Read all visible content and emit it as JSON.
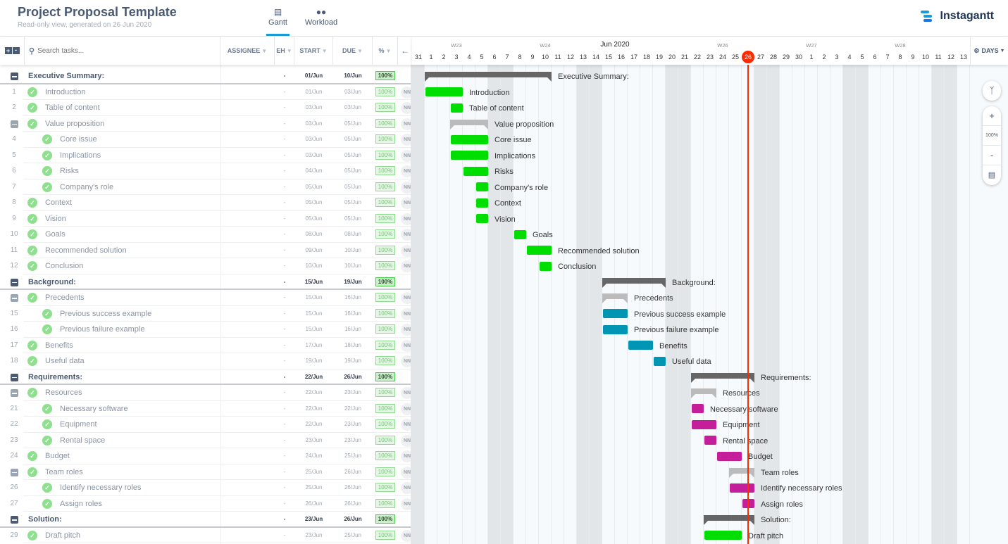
{
  "header": {
    "title": "Project Proposal Template",
    "subtitle": "Read-only view, generated on 26 Jun 2020",
    "tabs": [
      {
        "label": "Gantt",
        "icon": "gantt-icon",
        "active": true
      },
      {
        "label": "Workload",
        "icon": "users-icon"
      }
    ],
    "brand": "Instagantt"
  },
  "table": {
    "search_placeholder": "Search tasks...",
    "columns": [
      "ASSIGNEE",
      "EH",
      "START",
      "DUE",
      "%"
    ]
  },
  "timeline": {
    "month": "Jun 2020",
    "weeks": [
      "W23",
      "W24",
      "W26",
      "W27",
      "W28"
    ],
    "scale_label": "DAYS",
    "today": "26",
    "zoom": "100%",
    "days": [
      "31",
      "1",
      "2",
      "3",
      "4",
      "5",
      "6",
      "7",
      "8",
      "9",
      "10",
      "11",
      "12",
      "13",
      "14",
      "15",
      "16",
      "17",
      "18",
      "19",
      "20",
      "21",
      "22",
      "23",
      "24",
      "25",
      "26",
      "27",
      "28",
      "29",
      "30",
      "1",
      "2",
      "3",
      "4",
      "5",
      "6",
      "7",
      "8",
      "9",
      "10",
      "11",
      "12",
      "13"
    ]
  },
  "colors": {
    "green": "#00dd00",
    "teal": "#0095b3",
    "magenta": "#c41e9a",
    "summary": "#666666",
    "group": "#bbbbbb",
    "today": "#ff2a00",
    "accent": "#1a9ad6"
  },
  "rows": [
    {
      "type": "section",
      "name": "Executive Summary:",
      "start": "01/Jun",
      "due": "10/Jun",
      "eh": "-",
      "pct": "100%",
      "color": "green"
    },
    {
      "num": "1",
      "type": "task",
      "level": 1,
      "name": "Introduction",
      "start": "01/Jun",
      "due": "03/Jun",
      "eh": "-",
      "pct": "100%",
      "color": "green",
      "assignee": "NN"
    },
    {
      "num": "2",
      "type": "task",
      "level": 1,
      "name": "Table of content",
      "start": "03/Jun",
      "due": "03/Jun",
      "eh": "-",
      "pct": "100%",
      "color": "green",
      "assignee": "NN"
    },
    {
      "type": "group",
      "level": 1,
      "name": "Value proposition",
      "start": "03/Jun",
      "due": "05/Jun",
      "eh": "-",
      "pct": "100%",
      "assignee": "NN"
    },
    {
      "num": "4",
      "type": "task",
      "level": 2,
      "name": "Core issue",
      "start": "03/Jun",
      "due": "05/Jun",
      "eh": "-",
      "pct": "100%",
      "color": "green",
      "assignee": "NN"
    },
    {
      "num": "5",
      "type": "task",
      "level": 2,
      "name": "Implications",
      "start": "03/Jun",
      "due": "05/Jun",
      "eh": "-",
      "pct": "100%",
      "color": "green",
      "assignee": "NN"
    },
    {
      "num": "6",
      "type": "task",
      "level": 2,
      "name": "Risks",
      "start": "04/Jun",
      "due": "05/Jun",
      "eh": "-",
      "pct": "100%",
      "color": "green",
      "assignee": "NN"
    },
    {
      "num": "7",
      "type": "task",
      "level": 2,
      "name": "Company's role",
      "start": "05/Jun",
      "due": "05/Jun",
      "eh": "-",
      "pct": "100%",
      "color": "green",
      "assignee": "NN"
    },
    {
      "num": "8",
      "type": "task",
      "level": 1,
      "name": "Context",
      "start": "05/Jun",
      "due": "05/Jun",
      "eh": "-",
      "pct": "100%",
      "color": "green",
      "assignee": "NN"
    },
    {
      "num": "9",
      "type": "task",
      "level": 1,
      "name": "Vision",
      "start": "05/Jun",
      "due": "05/Jun",
      "eh": "-",
      "pct": "100%",
      "color": "green",
      "assignee": "NN"
    },
    {
      "num": "10",
      "type": "task",
      "level": 1,
      "name": "Goals",
      "start": "08/Jun",
      "due": "08/Jun",
      "eh": "-",
      "pct": "100%",
      "color": "green",
      "assignee": "NN"
    },
    {
      "num": "11",
      "type": "task",
      "level": 1,
      "name": "Recommended solution",
      "start": "09/Jun",
      "due": "10/Jun",
      "eh": "-",
      "pct": "100%",
      "color": "green",
      "assignee": "NN"
    },
    {
      "num": "12",
      "type": "task",
      "level": 1,
      "name": "Conclusion",
      "start": "10/Jun",
      "due": "10/Jun",
      "eh": "-",
      "pct": "100%",
      "color": "green",
      "assignee": "NN"
    },
    {
      "type": "section",
      "name": "Background:",
      "start": "15/Jun",
      "due": "19/Jun",
      "eh": "-",
      "pct": "100%",
      "color": "teal"
    },
    {
      "type": "group",
      "level": 1,
      "name": "Precedents",
      "start": "15/Jun",
      "due": "16/Jun",
      "eh": "-",
      "pct": "100%",
      "assignee": "NN"
    },
    {
      "num": "15",
      "type": "task",
      "level": 2,
      "name": "Previous success example",
      "start": "15/Jun",
      "due": "16/Jun",
      "eh": "-",
      "pct": "100%",
      "color": "teal",
      "assignee": "NN"
    },
    {
      "num": "16",
      "type": "task",
      "level": 2,
      "name": "Previous failure example",
      "start": "15/Jun",
      "due": "16/Jun",
      "eh": "-",
      "pct": "100%",
      "color": "teal",
      "assignee": "NN"
    },
    {
      "num": "17",
      "type": "task",
      "level": 1,
      "name": "Benefits",
      "start": "17/Jun",
      "due": "18/Jun",
      "eh": "-",
      "pct": "100%",
      "color": "teal",
      "assignee": "NN"
    },
    {
      "num": "18",
      "type": "task",
      "level": 1,
      "name": "Useful data",
      "start": "19/Jun",
      "due": "19/Jun",
      "eh": "-",
      "pct": "100%",
      "color": "teal",
      "assignee": "NN"
    },
    {
      "type": "section",
      "name": "Requirements:",
      "start": "22/Jun",
      "due": "26/Jun",
      "eh": "-",
      "pct": "100%",
      "color": "magenta"
    },
    {
      "type": "group",
      "level": 1,
      "name": "Resources",
      "start": "22/Jun",
      "due": "23/Jun",
      "eh": "-",
      "pct": "100%",
      "assignee": "NN"
    },
    {
      "num": "21",
      "type": "task",
      "level": 2,
      "name": "Necessary software",
      "start": "22/Jun",
      "due": "22/Jun",
      "eh": "-",
      "pct": "100%",
      "color": "magenta",
      "assignee": "NN"
    },
    {
      "num": "22",
      "type": "task",
      "level": 2,
      "name": "Equipment",
      "start": "22/Jun",
      "due": "23/Jun",
      "eh": "-",
      "pct": "100%",
      "color": "magenta",
      "assignee": "NN"
    },
    {
      "num": "23",
      "type": "task",
      "level": 2,
      "name": "Rental space",
      "start": "23/Jun",
      "due": "23/Jun",
      "eh": "-",
      "pct": "100%",
      "color": "magenta",
      "assignee": "NN"
    },
    {
      "num": "24",
      "type": "task",
      "level": 1,
      "name": "Budget",
      "start": "24/Jun",
      "due": "25/Jun",
      "eh": "-",
      "pct": "100%",
      "color": "magenta",
      "assignee": "NN"
    },
    {
      "type": "group",
      "level": 1,
      "name": "Team roles",
      "start": "25/Jun",
      "due": "26/Jun",
      "eh": "-",
      "pct": "100%",
      "assignee": "NN"
    },
    {
      "num": "26",
      "type": "task",
      "level": 2,
      "name": "Identify necessary roles",
      "start": "25/Jun",
      "due": "26/Jun",
      "eh": "-",
      "pct": "100%",
      "color": "magenta",
      "assignee": "NN"
    },
    {
      "num": "27",
      "type": "task",
      "level": 2,
      "name": "Assign roles",
      "start": "26/Jun",
      "due": "26/Jun",
      "eh": "-",
      "pct": "100%",
      "color": "magenta",
      "assignee": "NN"
    },
    {
      "type": "section",
      "name": "Solution:",
      "start": "23/Jun",
      "due": "26/Jun",
      "eh": "-",
      "pct": "100%",
      "color": "green"
    },
    {
      "num": "29",
      "type": "task",
      "level": 1,
      "name": "Draft pitch",
      "start": "23/Jun",
      "due": "25/Jun",
      "eh": "-",
      "pct": "100%",
      "color": "green",
      "assignee": "NN"
    }
  ]
}
